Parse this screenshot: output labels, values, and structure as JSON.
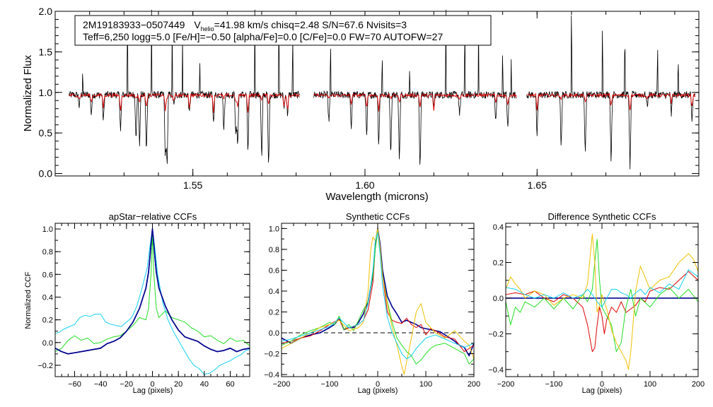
{
  "chart_data": [
    {
      "type": "line",
      "id": "spectrum",
      "xlabel": "Wavelength (microns)",
      "ylabel": "Normalized Flux",
      "xlim": [
        1.51,
        1.697
      ],
      "ylim": [
        -0.03,
        2.0
      ],
      "xticks": [
        "1.55",
        "1.60",
        "1.65"
      ],
      "yticks": [
        "0.0",
        "0.5",
        "1.0",
        "1.5",
        "2.0"
      ],
      "chips": [
        [
          1.514,
          1.581
        ],
        [
          1.585,
          1.644
        ],
        [
          1.647,
          1.696
        ]
      ],
      "annotation": {
        "line1_star": "2M19183933−0507449",
        "line1_v": "V",
        "line1_vsub": "helio",
        "line1_rest": "=41.98 km/s  chisq=2.48  S/N=67.6  Nvisits=3",
        "line2": "Teff=6,250 logg=5.0 [Fe/H]=−0.50 [alpha/Fe]=0.0 [C/Fe]=0.0 FW=70 AUTOFW=27"
      },
      "series": [
        {
          "name": "observed",
          "color": "#000000",
          "continuum": 0.97
        },
        {
          "name": "model",
          "color": "#e00000",
          "continuum": 0.965
        }
      ],
      "absorption_lines": [
        1.517,
        1.5205,
        1.524,
        1.529,
        1.5335,
        1.5345,
        1.5365,
        1.542,
        1.5425,
        1.5445,
        1.549,
        1.556,
        1.559,
        1.5625,
        1.563,
        1.566,
        1.57,
        1.572,
        1.5765,
        1.5775,
        1.5895,
        1.596,
        1.6005,
        1.604,
        1.6075,
        1.61,
        1.616,
        1.62,
        1.6275,
        1.638,
        1.6415,
        1.65,
        1.657,
        1.664,
        1.6715,
        1.677,
        1.682,
        1.689,
        1.695
      ],
      "emission_spikes": [
        1.518,
        1.531,
        1.538,
        1.544,
        1.547,
        1.552,
        1.568,
        1.575,
        1.579,
        1.59,
        1.605,
        1.613,
        1.6235,
        1.629,
        1.633,
        1.64,
        1.6425,
        1.66,
        1.669,
        1.6755,
        1.685,
        1.691
      ]
    },
    {
      "type": "line",
      "id": "apstar_ccf",
      "title": "apStar−relative CCFs",
      "xlabel": "Lag (pixels)",
      "ylabel": "Normalized CCF",
      "xlim": [
        -75,
        75
      ],
      "ylim": [
        -0.3,
        1.05
      ],
      "xticks": [
        -60,
        -40,
        -20,
        0,
        20,
        40,
        60
      ],
      "yticks": [
        -0.2,
        0.0,
        0.2,
        0.4,
        0.6,
        0.8,
        1.0
      ],
      "series": [
        {
          "name": "combined",
          "color": "#000090",
          "width": 1.6,
          "x": [
            -75,
            -70,
            -65,
            -60,
            -50,
            -40,
            -35,
            -30,
            -25,
            -20,
            -15,
            -10,
            -5,
            -3,
            -2,
            -1,
            0,
            1,
            2,
            3,
            5,
            10,
            15,
            20,
            25,
            30,
            35,
            40,
            45,
            50,
            55,
            60,
            65,
            70,
            75
          ],
          "y": [
            -0.05,
            -0.08,
            -0.1,
            -0.09,
            -0.07,
            -0.05,
            -0.01,
            0.01,
            0.04,
            0.1,
            0.18,
            0.3,
            0.48,
            0.62,
            0.74,
            0.88,
            1.0,
            0.88,
            0.74,
            0.62,
            0.48,
            0.32,
            0.2,
            0.11,
            0.05,
            0.03,
            0.01,
            -0.03,
            -0.06,
            -0.08,
            -0.07,
            -0.05,
            -0.08,
            -0.06,
            -0.05
          ]
        },
        {
          "name": "visit1",
          "color": "#22dd22",
          "width": 1,
          "x": [
            -75,
            -70,
            -65,
            -60,
            -55,
            -50,
            -45,
            -40,
            -35,
            -30,
            -25,
            -20,
            -15,
            -10,
            -5,
            -3,
            -1,
            0,
            1,
            3,
            5,
            10,
            15,
            20,
            25,
            30,
            35,
            40,
            45,
            50,
            55,
            60,
            65,
            70,
            75
          ],
          "y": [
            -0.08,
            -0.05,
            0.02,
            0.06,
            0.02,
            0.04,
            -0.01,
            0.0,
            0.03,
            0.05,
            0.06,
            0.1,
            0.15,
            0.22,
            0.2,
            0.3,
            0.62,
            0.95,
            0.62,
            0.3,
            0.22,
            0.28,
            0.22,
            0.2,
            0.18,
            0.13,
            0.1,
            0.05,
            0.06,
            0.02,
            -0.01,
            0.04,
            0.01,
            0.02,
            -0.03
          ]
        },
        {
          "name": "visit2",
          "color": "#11d0f0",
          "width": 1,
          "x": [
            -75,
            -72,
            -68,
            -64,
            -60,
            -56,
            -52,
            -48,
            -44,
            -40,
            -36,
            -32,
            -28,
            -24,
            -20,
            -16,
            -12,
            -8,
            -4,
            -2,
            0,
            2,
            4,
            8,
            12,
            16,
            20,
            24,
            28,
            32,
            36,
            40,
            44,
            48,
            52,
            56,
            60,
            64,
            68,
            72,
            75
          ],
          "y": [
            0.08,
            0.09,
            0.12,
            0.14,
            0.16,
            0.22,
            0.24,
            0.23,
            0.25,
            0.25,
            0.18,
            0.16,
            0.15,
            0.14,
            0.18,
            0.22,
            0.32,
            0.48,
            0.66,
            0.84,
            1.0,
            0.82,
            0.6,
            0.35,
            0.2,
            0.1,
            0.02,
            -0.06,
            -0.14,
            -0.2,
            -0.23,
            -0.28,
            -0.27,
            -0.24,
            -0.2,
            -0.18,
            -0.16,
            -0.13,
            -0.11,
            -0.07,
            -0.06
          ]
        }
      ]
    },
    {
      "type": "line",
      "id": "synthetic_ccf",
      "title": "Synthetic CCFs",
      "xlabel": "Lag (pixels)",
      "xlim": [
        -200,
        200
      ],
      "ylim": [
        -0.42,
        1.05
      ],
      "xticks": [
        -200,
        -100,
        0,
        100,
        200
      ],
      "yticks": [
        -0.4,
        -0.2,
        0.0,
        0.2,
        0.4,
        0.6,
        0.8,
        1.0
      ],
      "zero_line": true,
      "series": [
        {
          "name": "combined",
          "color": "#000090",
          "width": 1.6,
          "x": [
            -200,
            -180,
            -160,
            -140,
            -120,
            -100,
            -90,
            -80,
            -70,
            -60,
            -50,
            -40,
            -30,
            -20,
            -10,
            -5,
            0,
            5,
            10,
            20,
            30,
            40,
            50,
            60,
            70,
            80,
            90,
            100,
            110,
            120,
            130,
            140,
            150,
            160,
            170,
            180,
            190,
            200
          ],
          "y": [
            -0.05,
            -0.1,
            -0.05,
            -0.02,
            0.0,
            0.05,
            0.08,
            0.14,
            0.03,
            0.05,
            0.05,
            0.1,
            0.18,
            0.3,
            0.55,
            0.85,
            1.0,
            0.85,
            0.6,
            0.35,
            0.25,
            0.18,
            0.1,
            0.12,
            0.1,
            0.08,
            0.05,
            0.04,
            0.03,
            0.02,
            0.01,
            -0.02,
            -0.05,
            -0.08,
            -0.12,
            -0.14,
            -0.22,
            -0.1
          ]
        },
        {
          "name": "red",
          "color": "#e00000",
          "width": 1,
          "x": [
            -200,
            -180,
            -160,
            -140,
            -120,
            -100,
            -80,
            -70,
            -60,
            -50,
            -40,
            -30,
            -20,
            -10,
            -5,
            0,
            5,
            10,
            20,
            30,
            40,
            50,
            60,
            70,
            80,
            90,
            100,
            110,
            120,
            140,
            160,
            180,
            190,
            200
          ],
          "y": [
            -0.1,
            -0.08,
            -0.05,
            -0.03,
            0.02,
            0.08,
            0.13,
            0.03,
            0.05,
            0.06,
            0.08,
            0.12,
            0.22,
            0.48,
            0.82,
            0.98,
            0.8,
            0.55,
            0.2,
            0.12,
            0.1,
            0.09,
            0.14,
            0.08,
            0.05,
            0.08,
            -0.02,
            0.04,
            0.02,
            -0.04,
            -0.06,
            -0.18,
            -0.15,
            -0.12
          ]
        },
        {
          "name": "green",
          "color": "#22dd22",
          "width": 1,
          "x": [
            -200,
            -180,
            -160,
            -140,
            -120,
            -100,
            -90,
            -80,
            -70,
            -60,
            -50,
            -40,
            -30,
            -20,
            -10,
            -5,
            0,
            5,
            10,
            20,
            30,
            40,
            50,
            60,
            70,
            80,
            90,
            100,
            110,
            120,
            140,
            160,
            180,
            190,
            200
          ],
          "y": [
            -0.12,
            -0.08,
            -0.02,
            0.02,
            0.05,
            0.1,
            0.08,
            0.16,
            0.03,
            0.08,
            0.02,
            0.12,
            0.22,
            0.3,
            0.55,
            0.8,
            0.98,
            0.8,
            0.55,
            0.3,
            0.1,
            -0.05,
            -0.12,
            -0.18,
            -0.22,
            -0.3,
            -0.26,
            -0.2,
            -0.15,
            -0.12,
            -0.1,
            -0.15,
            -0.2,
            -0.3,
            -0.25
          ]
        },
        {
          "name": "yellow",
          "color": "#f0c000",
          "width": 1,
          "x": [
            -200,
            -180,
            -160,
            -140,
            -120,
            -100,
            -80,
            -60,
            -40,
            -30,
            -20,
            -15,
            -10,
            -5,
            0,
            5,
            10,
            20,
            30,
            40,
            50,
            55,
            60,
            70,
            80,
            90,
            100,
            110,
            120,
            140,
            160,
            180,
            190,
            200
          ],
          "y": [
            -0.15,
            -0.1,
            -0.05,
            0.0,
            0.05,
            0.08,
            0.12,
            0.02,
            0.05,
            0.1,
            0.4,
            0.78,
            0.92,
            0.88,
            1.0,
            0.82,
            0.55,
            0.28,
            0.05,
            -0.12,
            -0.32,
            -0.4,
            -0.28,
            -0.05,
            0.2,
            0.28,
            0.1,
            0.05,
            0.0,
            -0.05,
            0.02,
            -0.08,
            -0.12,
            -0.25
          ]
        },
        {
          "name": "cyan",
          "color": "#11d0f0",
          "width": 1,
          "x": [
            -200,
            -180,
            -160,
            -140,
            -120,
            -100,
            -80,
            -60,
            -40,
            -30,
            -20,
            -10,
            -5,
            0,
            5,
            10,
            20,
            30,
            40,
            50,
            60,
            70,
            80,
            90,
            100,
            120,
            140,
            160,
            180,
            200
          ],
          "y": [
            -0.08,
            -0.06,
            -0.03,
            0.0,
            0.03,
            0.06,
            0.14,
            0.05,
            0.08,
            0.12,
            0.28,
            0.6,
            0.88,
            0.96,
            0.75,
            0.45,
            0.15,
            0.0,
            -0.1,
            -0.2,
            -0.25,
            -0.22,
            -0.15,
            -0.1,
            -0.05,
            -0.02,
            -0.06,
            -0.1,
            -0.14,
            -0.1
          ]
        }
      ]
    },
    {
      "type": "line",
      "id": "difference_ccf",
      "title": "Difference Synthetic CCFs",
      "xlabel": "Lag (pixels)",
      "xlim": [
        -200,
        200
      ],
      "ylim": [
        -0.44,
        0.42
      ],
      "xticks": [
        -200,
        -100,
        0,
        100,
        200
      ],
      "yticks": [
        -0.4,
        -0.2,
        0.0,
        0.2,
        0.4
      ],
      "zero_line": true,
      "series": [
        {
          "name": "combined",
          "color": "#000090",
          "width": 1.6,
          "x": [
            -200,
            200
          ],
          "y": [
            0.0,
            0.0
          ]
        },
        {
          "name": "red",
          "color": "#e00000",
          "width": 1,
          "x": [
            -200,
            -180,
            -160,
            -140,
            -120,
            -100,
            -80,
            -60,
            -40,
            -30,
            -20,
            -15,
            -10,
            -5,
            0,
            5,
            10,
            20,
            30,
            40,
            50,
            60,
            70,
            80,
            90,
            100,
            120,
            140,
            160,
            180,
            200
          ],
          "y": [
            0.02,
            0.03,
            0.02,
            0.04,
            0.0,
            -0.02,
            0.02,
            0.0,
            -0.05,
            -0.15,
            -0.3,
            -0.28,
            -0.15,
            -0.05,
            -0.1,
            -0.2,
            -0.12,
            -0.05,
            -0.08,
            -0.02,
            -0.08,
            -0.06,
            -0.04,
            0.0,
            -0.02,
            0.04,
            0.06,
            0.05,
            0.1,
            0.15,
            0.1
          ]
        },
        {
          "name": "green",
          "color": "#22dd22",
          "width": 1,
          "x": [
            -200,
            -190,
            -180,
            -170,
            -160,
            -140,
            -120,
            -100,
            -80,
            -60,
            -40,
            -30,
            -20,
            -15,
            -10,
            -5,
            0,
            10,
            20,
            30,
            40,
            50,
            60,
            70,
            80,
            100,
            120,
            140,
            160,
            180,
            200
          ],
          "y": [
            -0.02,
            -0.15,
            -0.05,
            -0.08,
            -0.02,
            -0.05,
            0.0,
            -0.06,
            0.0,
            -0.06,
            0.02,
            -0.02,
            0.05,
            0.2,
            0.33,
            0.1,
            -0.05,
            -0.1,
            -0.15,
            -0.3,
            -0.25,
            -0.05,
            0.05,
            -0.1,
            0.0,
            -0.05,
            0.02,
            0.06,
            0.0,
            0.05,
            -0.02
          ]
        },
        {
          "name": "yellow",
          "color": "#f0c000",
          "width": 1,
          "x": [
            -200,
            -190,
            -180,
            -170,
            -160,
            -140,
            -120,
            -100,
            -80,
            -60,
            -40,
            -30,
            -20,
            -15,
            -10,
            -5,
            0,
            10,
            20,
            30,
            40,
            50,
            55,
            60,
            70,
            80,
            100,
            120,
            140,
            160,
            180,
            190,
            200
          ],
          "y": [
            0.05,
            0.12,
            0.08,
            0.05,
            0.0,
            0.04,
            0.02,
            -0.04,
            0.0,
            0.02,
            0.0,
            0.08,
            0.36,
            0.2,
            -0.08,
            -0.04,
            0.02,
            -0.06,
            -0.18,
            -0.25,
            -0.3,
            -0.35,
            -0.4,
            -0.3,
            0.04,
            0.18,
            0.05,
            0.1,
            0.12,
            0.2,
            0.25,
            0.22,
            0.15
          ]
        },
        {
          "name": "cyan",
          "color": "#11d0f0",
          "width": 1,
          "x": [
            -200,
            -180,
            -160,
            -140,
            -120,
            -100,
            -80,
            -60,
            -40,
            -30,
            -20,
            -10,
            0,
            10,
            20,
            30,
            40,
            50,
            60,
            70,
            80,
            90,
            100,
            120,
            140,
            160,
            180,
            200
          ],
          "y": [
            0.06,
            0.05,
            0.02,
            0.0,
            0.02,
            0.0,
            0.03,
            0.0,
            0.02,
            0.05,
            0.02,
            -0.02,
            -0.05,
            0.0,
            0.05,
            0.05,
            0.03,
            0.02,
            0.0,
            0.03,
            0.05,
            0.02,
            0.06,
            0.03,
            0.08,
            0.05,
            0.16,
            0.12
          ]
        }
      ]
    }
  ]
}
